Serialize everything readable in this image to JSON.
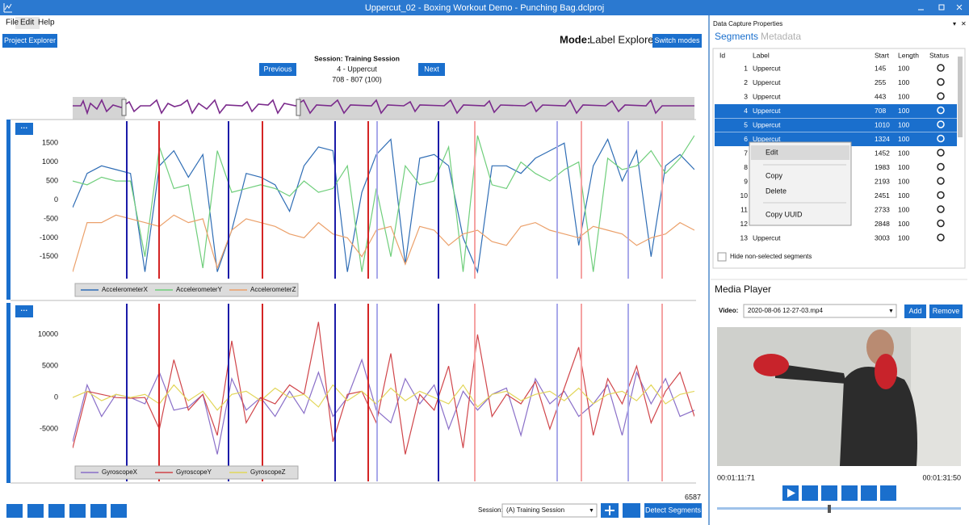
{
  "window": {
    "title": "Uppercut_02 - Boxing Workout Demo - Punching Bag.dclproj"
  },
  "menu": [
    "File",
    "Edit",
    "Help"
  ],
  "toolbar": {
    "project_explorer": "Project Explorer",
    "mode_label": "Mode:",
    "mode_value": "Label Explorer",
    "switch_modes": "Switch modes"
  },
  "session_nav": {
    "previous": "Previous",
    "next": "Next",
    "session": "Session: Training Session",
    "segment": "4 - Uppercut",
    "range": "708 - 807 (100)"
  },
  "chart_data": [
    {
      "type": "line",
      "ylim": [
        -2080,
        2080
      ],
      "yticks": [
        -1500,
        -1000,
        -500,
        0,
        500,
        1000,
        1500
      ],
      "series": [
        {
          "name": "AccelerometerX",
          "color": "#2f6db5",
          "values": [
            -200,
            700,
            900,
            800,
            700,
            -1900,
            900,
            1300,
            600,
            1200,
            -1900,
            -800,
            700,
            600,
            400,
            -300,
            900,
            1400,
            1300,
            -1900,
            200,
            1200,
            1600,
            -1700,
            1100,
            1200,
            900,
            -1000,
            -1900,
            900,
            900,
            700,
            1100,
            1300,
            1500,
            -1200,
            900,
            1600,
            500,
            1300,
            -1500,
            900,
            1200,
            800
          ]
        },
        {
          "name": "AccelerometerY",
          "color": "#6fce7b",
          "values": [
            500,
            400,
            600,
            500,
            500,
            -1500,
            1400,
            300,
            400,
            -1800,
            1300,
            200,
            300,
            400,
            300,
            100,
            500,
            200,
            300,
            900,
            -1900,
            300,
            -1500,
            900,
            400,
            500,
            1400,
            -1900,
            1700,
            400,
            300,
            1000,
            700,
            500,
            800,
            1000,
            -1900,
            1100,
            800,
            900,
            1300,
            700,
            1100,
            1700
          ]
        },
        {
          "name": "AccelerometerZ",
          "color": "#eba06a",
          "values": [
            -1900,
            -600,
            -600,
            -400,
            -500,
            -600,
            -700,
            -400,
            -600,
            -500,
            -1800,
            -800,
            -500,
            -600,
            -700,
            -900,
            -1000,
            -600,
            -900,
            -1000,
            -1500,
            -800,
            -700,
            -1700,
            -700,
            -800,
            -1200,
            -900,
            -800,
            -1100,
            -1200,
            -700,
            -600,
            -800,
            -900,
            -1000,
            -700,
            -800,
            -900,
            -1200,
            -1000,
            -900,
            -600,
            -800
          ]
        }
      ]
    },
    {
      "type": "line",
      "ylim": [
        -13300,
        14900
      ],
      "yticks": [
        -5000,
        0,
        5000,
        10000
      ],
      "series": [
        {
          "name": "GyroscopeX",
          "color": "#8a6fc8",
          "values": [
            -7000,
            2000,
            -3000,
            500,
            0,
            -1000,
            4000,
            -2000,
            -1500,
            500,
            -9000,
            3000,
            -2000,
            0,
            -3000,
            1000,
            -2500,
            4000,
            -3000,
            0,
            6000,
            -2000,
            -4000,
            3000,
            -1000,
            2000,
            -5000,
            1000,
            -2000,
            500,
            1500,
            -6000,
            3000,
            -1000,
            1000,
            -3000,
            -1000,
            2000,
            -6000,
            4000,
            -1000,
            3000,
            -3000,
            -2000
          ]
        },
        {
          "name": "GyroscopeY",
          "color": "#d0454a",
          "values": [
            -8000,
            1000,
            500,
            0,
            -100,
            0,
            -5000,
            6000,
            -2000,
            500,
            -6000,
            9000,
            -4000,
            0,
            -1000,
            2000,
            500,
            12000,
            -7000,
            500,
            1000,
            -4000,
            7000,
            -9000,
            500,
            -2000,
            5000,
            -8000,
            10000,
            -3000,
            500,
            -1000,
            2500,
            -5000,
            1500,
            8000,
            -6000,
            3000,
            -1000,
            5000,
            -4000,
            1000,
            4000,
            -3000
          ]
        },
        {
          "name": "GyroscopeZ",
          "color": "#e2d65a",
          "values": [
            0,
            1000,
            -500,
            500,
            0,
            500,
            -1000,
            2000,
            -500,
            1000,
            -2000,
            500,
            1000,
            -500,
            1500,
            0,
            500,
            -1500,
            2000,
            -500,
            1000,
            -1000,
            1500,
            -500,
            1000,
            0,
            -1000,
            2000,
            -1500,
            500,
            1000,
            -500,
            500,
            1000,
            -500,
            1500,
            -1000,
            500,
            1000,
            -500,
            2000,
            -1000,
            500,
            1000
          ]
        }
      ]
    }
  ],
  "bottom_bar": {
    "count": "6587",
    "session_label": "Session:",
    "session_value": "(A) Training Session",
    "detect": "Detect Segments"
  },
  "properties": {
    "title": "Data Capture Properties",
    "tabs": [
      "Segments",
      "Metadata"
    ],
    "columns": [
      "Id",
      "Label",
      "Start",
      "Length",
      "Status"
    ],
    "rows": [
      {
        "id": "1",
        "label": "Uppercut",
        "start": "145",
        "length": "100"
      },
      {
        "id": "2",
        "label": "Uppercut",
        "start": "255",
        "length": "100"
      },
      {
        "id": "3",
        "label": "Uppercut",
        "start": "443",
        "length": "100"
      },
      {
        "id": "4",
        "label": "Uppercut",
        "start": "708",
        "length": "100"
      },
      {
        "id": "5",
        "label": "Uppercut",
        "start": "1010",
        "length": "100"
      },
      {
        "id": "6",
        "label": "Uppercut",
        "start": "1324",
        "length": "100"
      },
      {
        "id": "7",
        "label": null,
        "start": "1452",
        "length": "100"
      },
      {
        "id": "8",
        "label": null,
        "start": "1983",
        "length": "100"
      },
      {
        "id": "9",
        "label": null,
        "start": "2193",
        "length": "100"
      },
      {
        "id": "10",
        "label": null,
        "start": "2451",
        "length": "100"
      },
      {
        "id": "11",
        "label": null,
        "start": "2733",
        "length": "100"
      },
      {
        "id": "12",
        "label": null,
        "start": "2848",
        "length": "100"
      },
      {
        "id": "13",
        "label": "Uppercut",
        "start": "3003",
        "length": "100"
      }
    ],
    "context_menu": [
      "Edit",
      "Copy",
      "Delete",
      "Copy UUID"
    ],
    "hide_checkbox": "Hide non-selected segments"
  },
  "media_player": {
    "title": "Media Player",
    "video_label": "Video:",
    "video_file": "2020-08-06 12-27-03.mp4",
    "add": "Add",
    "remove": "Remove",
    "time_current": "00:01:11:71",
    "time_total": "00:01:31:50"
  }
}
